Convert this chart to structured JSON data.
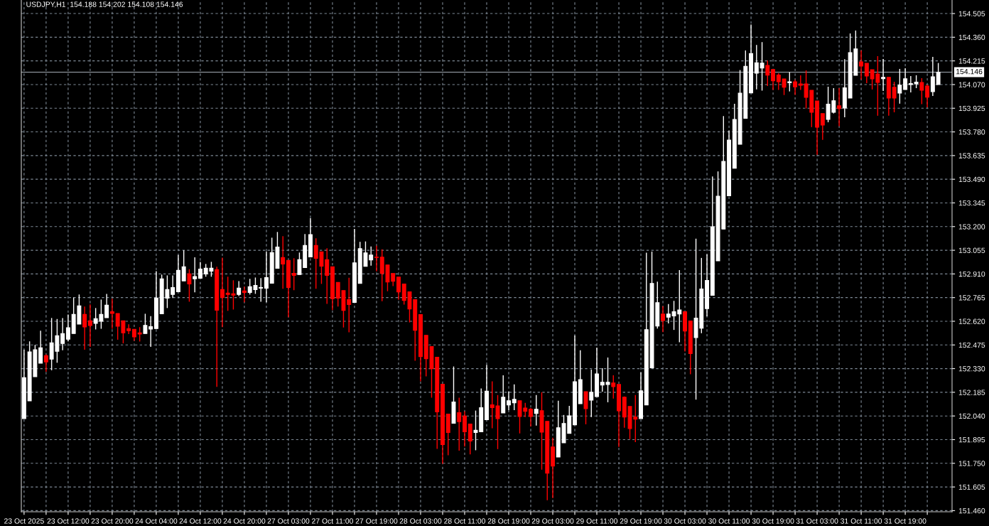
{
  "chart_data": {
    "type": "candlestick",
    "title": "USDJPY,H1  154.188 154.202 154.108 154.146",
    "categories": [
      "23 Oct 2025",
      null,
      null,
      null,
      null,
      null,
      null,
      null,
      "23 Oct 12:00",
      null,
      null,
      null,
      null,
      null,
      null,
      null,
      "23 Oct 20:00",
      null,
      null,
      null,
      null,
      null,
      null,
      null,
      "24 Oct 04:00",
      null,
      null,
      null,
      null,
      null,
      null,
      null,
      "24 Oct 12:00",
      null,
      null,
      null,
      null,
      null,
      null,
      null,
      "24 Oct 20:00",
      null,
      null,
      null,
      null,
      null,
      null,
      null,
      "27 Oct 03:00",
      null,
      null,
      null,
      null,
      null,
      null,
      null,
      "27 Oct 11:00",
      null,
      null,
      null,
      null,
      null,
      null,
      null,
      "27 Oct 19:00",
      null,
      null,
      null,
      null,
      null,
      null,
      null,
      "28 Oct 03:00",
      null,
      null,
      null,
      null,
      null,
      null,
      null,
      "28 Oct 11:00",
      null,
      null,
      null,
      null,
      null,
      null,
      null,
      "28 Oct 19:00",
      null,
      null,
      null,
      null,
      null,
      null,
      null,
      "29 Oct 03:00",
      null,
      null,
      null,
      null,
      null,
      null,
      null,
      "29 Oct 11:00",
      null,
      null,
      null,
      null,
      null,
      null,
      null,
      "29 Oct 19:00",
      null,
      null,
      null,
      null,
      null,
      null,
      null,
      "30 Oct 03:00",
      null,
      null,
      null,
      null,
      null,
      null,
      null,
      "30 Oct 11:00",
      null,
      null,
      null,
      null,
      null,
      null,
      null,
      "30 Oct 19:00",
      null,
      null,
      null,
      null,
      null,
      null,
      null,
      "31 Oct 03:00",
      null,
      null,
      null,
      null,
      null,
      null,
      null,
      "31 Oct 11:00",
      null,
      null,
      null,
      null,
      null,
      null,
      null,
      "31 Oct 19:00",
      null,
      null,
      null,
      null,
      null,
      null
    ],
    "ohlc": [
      [
        152.024,
        152.446,
        152.024,
        152.275
      ],
      [
        152.133,
        152.497,
        152.133,
        152.432
      ],
      [
        152.281,
        152.475,
        152.281,
        152.445
      ],
      [
        152.363,
        152.562,
        152.363,
        152.458
      ],
      [
        152.41,
        152.417,
        152.311,
        152.371
      ],
      [
        152.388,
        152.64,
        152.32,
        152.488
      ],
      [
        152.436,
        152.634,
        152.366,
        152.532
      ],
      [
        152.484,
        152.64,
        152.442,
        152.545
      ],
      [
        152.51,
        152.661,
        152.497,
        152.581
      ],
      [
        152.545,
        152.766,
        152.545,
        152.662
      ],
      [
        152.603,
        152.784,
        152.603,
        152.714
      ],
      [
        152.662,
        152.71,
        152.446,
        152.585
      ],
      [
        152.623,
        152.723,
        152.463,
        152.594
      ],
      [
        152.607,
        152.701,
        152.57,
        152.636
      ],
      [
        152.62,
        152.753,
        152.574,
        152.662
      ],
      [
        152.642,
        152.788,
        152.642,
        152.719
      ],
      [
        152.679,
        152.758,
        152.574,
        152.668
      ],
      [
        152.668,
        152.668,
        152.507,
        152.59
      ],
      [
        152.623,
        152.623,
        152.485,
        152.549
      ],
      [
        152.575,
        152.601,
        152.542,
        152.562
      ],
      [
        152.571,
        152.571,
        152.5,
        152.524
      ],
      [
        152.549,
        152.584,
        152.496,
        152.542
      ],
      [
        152.545,
        152.666,
        152.545,
        152.595
      ],
      [
        152.572,
        152.652,
        152.463,
        152.587
      ],
      [
        152.575,
        152.927,
        152.575,
        152.762
      ],
      [
        152.666,
        152.906,
        152.666,
        152.88
      ],
      [
        152.762,
        152.901,
        152.701,
        152.814
      ],
      [
        152.784,
        152.901,
        152.762,
        152.827
      ],
      [
        152.801,
        153.026,
        152.801,
        152.932
      ],
      [
        152.867,
        153.055,
        152.867,
        152.954
      ],
      [
        152.91,
        152.939,
        152.74,
        152.849
      ],
      [
        152.88,
        153.012,
        152.797,
        152.894
      ],
      [
        152.884,
        152.984,
        152.884,
        152.94
      ],
      [
        152.91,
        152.971,
        152.893,
        152.945
      ],
      [
        152.927,
        152.984,
        152.893,
        152.945
      ],
      [
        152.936,
        152.954,
        152.218,
        152.688
      ],
      [
        152.814,
        153.01,
        152.584,
        152.766
      ],
      [
        152.793,
        152.893,
        152.684,
        152.784
      ],
      [
        152.788,
        152.871,
        152.692,
        152.78
      ],
      [
        152.784,
        152.866,
        152.775,
        152.823
      ],
      [
        152.806,
        152.832,
        152.736,
        152.797
      ],
      [
        152.797,
        152.88,
        152.784,
        152.832
      ],
      [
        152.814,
        152.888,
        152.788,
        152.84
      ],
      [
        152.823,
        152.884,
        152.74,
        152.827
      ],
      [
        152.823,
        153.048,
        152.736,
        152.888
      ],
      [
        152.853,
        153.132,
        152.853,
        153.041
      ],
      [
        152.945,
        153.167,
        152.945,
        153.075
      ],
      [
        153.01,
        153.141,
        152.819,
        152.971
      ],
      [
        152.993,
        152.993,
        152.645,
        152.827
      ],
      [
        152.914,
        153.006,
        152.81,
        152.901
      ],
      [
        152.906,
        153.041,
        152.906,
        152.997
      ],
      [
        152.949,
        153.154,
        152.949,
        153.084
      ],
      [
        153.014,
        153.251,
        153.014,
        153.151
      ],
      [
        153.084,
        153.128,
        152.819,
        153.006
      ],
      [
        153.045,
        153.045,
        152.849,
        152.958
      ],
      [
        152.997,
        153.067,
        152.727,
        152.901
      ],
      [
        152.954,
        152.954,
        152.688,
        152.758
      ],
      [
        152.858,
        152.858,
        152.71,
        152.762
      ],
      [
        152.808,
        152.808,
        152.582,
        152.687
      ],
      [
        152.752,
        152.887,
        152.552,
        152.722
      ],
      [
        152.735,
        153.186,
        152.735,
        152.978
      ],
      [
        152.852,
        153.107,
        152.852,
        153.065
      ],
      [
        152.956,
        153.109,
        152.956,
        153.039
      ],
      [
        152.996,
        153.078,
        152.961,
        153.026
      ],
      [
        153.013,
        153.083,
        152.926,
        153.011
      ],
      [
        153.013,
        153.061,
        152.743,
        152.913
      ],
      [
        152.965,
        152.965,
        152.804,
        152.861
      ],
      [
        152.913,
        152.913,
        152.835,
        152.865
      ],
      [
        152.891,
        152.891,
        152.752,
        152.8
      ],
      [
        152.848,
        152.848,
        152.722,
        152.748
      ],
      [
        152.8,
        152.8,
        152.613,
        152.695
      ],
      [
        152.752,
        152.752,
        152.378,
        152.565
      ],
      [
        152.661,
        152.661,
        152.252,
        152.404
      ],
      [
        152.534,
        152.534,
        152.282,
        152.391
      ],
      [
        152.465,
        152.465,
        152.152,
        152.33
      ],
      [
        152.4,
        152.4,
        151.838,
        152.065
      ],
      [
        152.234,
        152.234,
        151.747,
        151.865
      ],
      [
        152.052,
        152.052,
        151.799,
        151.939
      ],
      [
        151.995,
        152.343,
        151.995,
        152.126
      ],
      [
        152.06,
        152.152,
        151.827,
        152.005
      ],
      [
        152.039,
        152.069,
        151.853,
        151.943
      ],
      [
        151.991,
        151.991,
        151.805,
        151.886
      ],
      [
        151.939,
        152.073,
        151.83,
        151.952
      ],
      [
        151.943,
        152.208,
        151.943,
        152.091
      ],
      [
        152.017,
        152.353,
        152.017,
        152.192
      ],
      [
        152.108,
        152.252,
        151.965,
        152.091
      ],
      [
        152.102,
        152.168,
        151.837,
        152.024
      ],
      [
        152.059,
        152.289,
        152.059,
        152.155
      ],
      [
        152.107,
        152.189,
        152.076,
        152.133
      ],
      [
        152.12,
        152.233,
        152.076,
        152.142
      ],
      [
        152.133,
        152.133,
        151.933,
        152.037
      ],
      [
        152.089,
        152.12,
        152.033,
        152.068
      ],
      [
        152.081,
        152.089,
        151.976,
        152.037
      ],
      [
        152.055,
        152.168,
        151.981,
        152.081
      ],
      [
        152.072,
        152.185,
        151.711,
        151.941
      ],
      [
        152.007,
        152.007,
        151.524,
        151.689
      ],
      [
        151.85,
        151.907,
        151.537,
        151.733
      ],
      [
        151.789,
        152.133,
        151.789,
        151.968
      ],
      [
        151.876,
        152.046,
        151.876,
        151.994
      ],
      [
        151.933,
        152.102,
        151.933,
        152.041
      ],
      [
        151.985,
        152.533,
        151.985,
        152.25
      ],
      [
        152.115,
        152.442,
        152.115,
        152.263
      ],
      [
        152.189,
        152.189,
        151.989,
        152.085
      ],
      [
        152.137,
        152.324,
        152.033,
        152.185
      ],
      [
        152.159,
        152.459,
        152.159,
        152.298
      ],
      [
        152.229,
        152.333,
        152.189,
        152.246
      ],
      [
        152.233,
        152.398,
        152.124,
        152.246
      ],
      [
        152.242,
        152.289,
        152.146,
        152.22
      ],
      [
        152.233,
        152.233,
        151.85,
        152.072
      ],
      [
        152.155,
        152.159,
        151.968,
        152.033
      ],
      [
        152.098,
        152.098,
        151.898,
        151.963
      ],
      [
        152.033,
        152.168,
        151.88,
        152.02
      ],
      [
        152.024,
        152.307,
        152.024,
        152.194
      ],
      [
        152.107,
        153.04,
        152.107,
        152.569
      ],
      [
        152.335,
        153.047,
        152.335,
        152.852
      ],
      [
        152.591,
        152.863,
        152.575,
        152.734
      ],
      [
        152.664,
        152.712,
        152.553,
        152.625
      ],
      [
        152.645,
        152.725,
        152.607,
        152.664
      ],
      [
        152.653,
        152.745,
        152.567,
        152.678
      ],
      [
        152.665,
        152.933,
        152.491,
        152.689
      ],
      [
        152.678,
        152.678,
        152.435,
        152.56
      ],
      [
        152.622,
        152.622,
        152.296,
        152.422
      ],
      [
        152.52,
        153.126,
        152.14,
        152.639
      ],
      [
        152.578,
        153.008,
        152.547,
        152.818
      ],
      [
        152.697,
        153.03,
        152.65,
        152.87
      ],
      [
        152.779,
        153.507,
        152.779,
        153.199
      ],
      [
        152.99,
        153.538,
        152.99,
        153.386
      ],
      [
        153.185,
        153.877,
        153.185,
        153.599
      ],
      [
        153.389,
        153.788,
        153.389,
        153.73
      ],
      [
        153.557,
        153.952,
        153.557,
        153.856
      ],
      [
        153.704,
        154.159,
        153.704,
        154.017
      ],
      [
        153.863,
        154.279,
        153.863,
        154.182
      ],
      [
        154.019,
        154.438,
        154.019,
        154.26
      ],
      [
        154.14,
        154.313,
        154.04,
        154.204
      ],
      [
        154.171,
        154.33,
        154.033,
        154.201
      ],
      [
        154.187,
        154.217,
        154.061,
        154.128
      ],
      [
        154.162,
        154.162,
        154.037,
        154.093
      ],
      [
        154.128,
        154.139,
        154.037,
        154.087
      ],
      [
        154.104,
        154.104,
        154.006,
        154.054
      ],
      [
        154.081,
        154.146,
        154.028,
        154.087
      ],
      [
        154.087,
        154.1,
        154.007,
        154.056
      ],
      [
        154.074,
        154.127,
        154.037,
        154.066
      ],
      [
        154.074,
        154.157,
        153.924,
        153.992
      ],
      [
        154.035,
        154.035,
        153.809,
        153.9
      ],
      [
        153.97,
        153.97,
        153.64,
        153.809
      ],
      [
        153.892,
        153.892,
        153.731,
        153.822
      ],
      [
        153.857,
        154.057,
        153.839,
        153.95
      ],
      [
        153.9,
        154.048,
        153.893,
        153.971
      ],
      [
        153.94,
        154.048,
        153.815,
        153.923
      ],
      [
        153.926,
        154.226,
        153.87,
        154.05
      ],
      [
        153.987,
        154.383,
        153.987,
        154.266
      ],
      [
        154.127,
        154.401,
        154.127,
        154.288
      ],
      [
        154.209,
        154.279,
        154.1,
        154.183
      ],
      [
        154.2,
        154.2,
        154.079,
        154.122
      ],
      [
        154.161,
        154.161,
        154.04,
        154.105
      ],
      [
        154.135,
        154.244,
        153.879,
        154.083
      ],
      [
        154.106,
        154.227,
        154.031,
        154.114
      ],
      [
        154.114,
        154.114,
        153.879,
        153.987
      ],
      [
        154.053,
        154.087,
        153.9,
        153.987
      ],
      [
        154.018,
        154.166,
        153.953,
        154.066
      ],
      [
        154.04,
        154.17,
        154.04,
        154.105
      ],
      [
        154.07,
        154.122,
        154.022,
        154.076
      ],
      [
        154.074,
        154.127,
        154.048,
        154.085
      ],
      [
        154.083,
        154.109,
        153.95,
        154.035
      ],
      [
        154.061,
        154.07,
        153.931,
        153.993
      ],
      [
        154.027,
        154.24,
        154.0,
        154.118
      ],
      [
        154.07,
        154.202,
        154.07,
        154.146
      ]
    ],
    "colors": [
      "#ffffff",
      "#ffffff",
      "#ffffff",
      "#ffffff",
      "#ff0000",
      "#ffffff",
      "#ffffff",
      "#ffffff",
      "#ffffff",
      "#ffffff",
      "#ffffff",
      "#ff0000",
      "#ff0000",
      "#ffffff",
      "#ffffff",
      "#ffffff",
      "#ff0000",
      "#ff0000",
      "#ff0000",
      "#ff0000",
      "#ff0000",
      "#ff0000",
      "#ffffff",
      "#ffffff",
      "#ffffff",
      "#ffffff",
      "#ffffff",
      "#ffffff",
      "#ffffff",
      "#ffffff",
      "#ff0000",
      "#ffffff",
      "#ffffff",
      "#ffffff",
      "#ffffff",
      "#ff0000",
      "#ff0000",
      "#ff0000",
      "#ff0000",
      "#ffffff",
      "#ff0000",
      "#ffffff",
      "#ffffff",
      "#ffffff",
      "#ffffff",
      "#ffffff",
      "#ffffff",
      "#ff0000",
      "#ff0000",
      "#ff0000",
      "#ffffff",
      "#ffffff",
      "#ffffff",
      "#ff0000",
      "#ff0000",
      "#ff0000",
      "#ff0000",
      "#ff0000",
      "#ff0000",
      "#ff0000",
      "#ffffff",
      "#ffffff",
      "#ffffff",
      "#ffffff",
      "#ff0000",
      "#ff0000",
      "#ff0000",
      "#ff0000",
      "#ff0000",
      "#ff0000",
      "#ff0000",
      "#ff0000",
      "#ff0000",
      "#ff0000",
      "#ff0000",
      "#ff0000",
      "#ff0000",
      "#ff0000",
      "#ffffff",
      "#ff0000",
      "#ff0000",
      "#ff0000",
      "#ffffff",
      "#ffffff",
      "#ffffff",
      "#ff0000",
      "#ff0000",
      "#ffffff",
      "#ffffff",
      "#ffffff",
      "#ff0000",
      "#ff0000",
      "#ff0000",
      "#ffffff",
      "#ff0000",
      "#ff0000",
      "#ff0000",
      "#ffffff",
      "#ffffff",
      "#ffffff",
      "#ffffff",
      "#ffffff",
      "#ff0000",
      "#ffffff",
      "#ffffff",
      "#ffffff",
      "#ffffff",
      "#ff0000",
      "#ff0000",
      "#ff0000",
      "#ff0000",
      "#ff0000",
      "#ffffff",
      "#ffffff",
      "#ffffff",
      "#ffffff",
      "#ff0000",
      "#ffffff",
      "#ffffff",
      "#ffffff",
      "#ff0000",
      "#ff0000",
      "#ffffff",
      "#ffffff",
      "#ffffff",
      "#ffffff",
      "#ffffff",
      "#ffffff",
      "#ffffff",
      "#ffffff",
      "#ffffff",
      "#ffffff",
      "#ffffff",
      "#ffffff",
      "#ffffff",
      "#ff0000",
      "#ff0000",
      "#ff0000",
      "#ff0000",
      "#ffffff",
      "#ff0000",
      "#ff0000",
      "#ff0000",
      "#ff0000",
      "#ff0000",
      "#ff0000",
      "#ffffff",
      "#ffffff",
      "#ff0000",
      "#ffffff",
      "#ffffff",
      "#ffffff",
      "#ff0000",
      "#ff0000",
      "#ff0000",
      "#ff0000",
      "#ffffff",
      "#ff0000",
      "#ff0000",
      "#ffffff",
      "#ffffff",
      "#ffffff",
      "#ffffff",
      "#ff0000",
      "#ff0000",
      "#ffffff",
      "#ffffff"
    ],
    "ylim": [
      151.453,
      154.588
    ],
    "yticks": [
      154.505,
      {
        "value": 154.36,
        "label": "154.360"
      },
      154.215,
      {
        "value": 154.07,
        "label": "154.070"
      },
      153.925,
      {
        "value": 153.78,
        "label": "153.780"
      },
      153.635,
      {
        "value": 153.49,
        "label": "153.490"
      },
      153.345,
      {
        "value": 153.2,
        "label": "153.200"
      },
      153.055,
      {
        "value": 152.91,
        "label": "152.910"
      },
      152.765,
      {
        "value": 152.62,
        "label": "152.620"
      },
      152.475,
      {
        "value": 152.33,
        "label": "152.330"
      },
      152.185,
      {
        "value": 152.04,
        "label": "152.040"
      },
      151.895,
      {
        "value": 151.75,
        "label": "151.750"
      },
      151.605,
      {
        "value": 151.46,
        "label": "151.460"
      }
    ],
    "ref_lines": [
      {
        "axis": "y",
        "value": 154.146,
        "label": "154.146",
        "color": "#a6aeb6",
        "line_style": "solid"
      }
    ],
    "grid": true
  }
}
